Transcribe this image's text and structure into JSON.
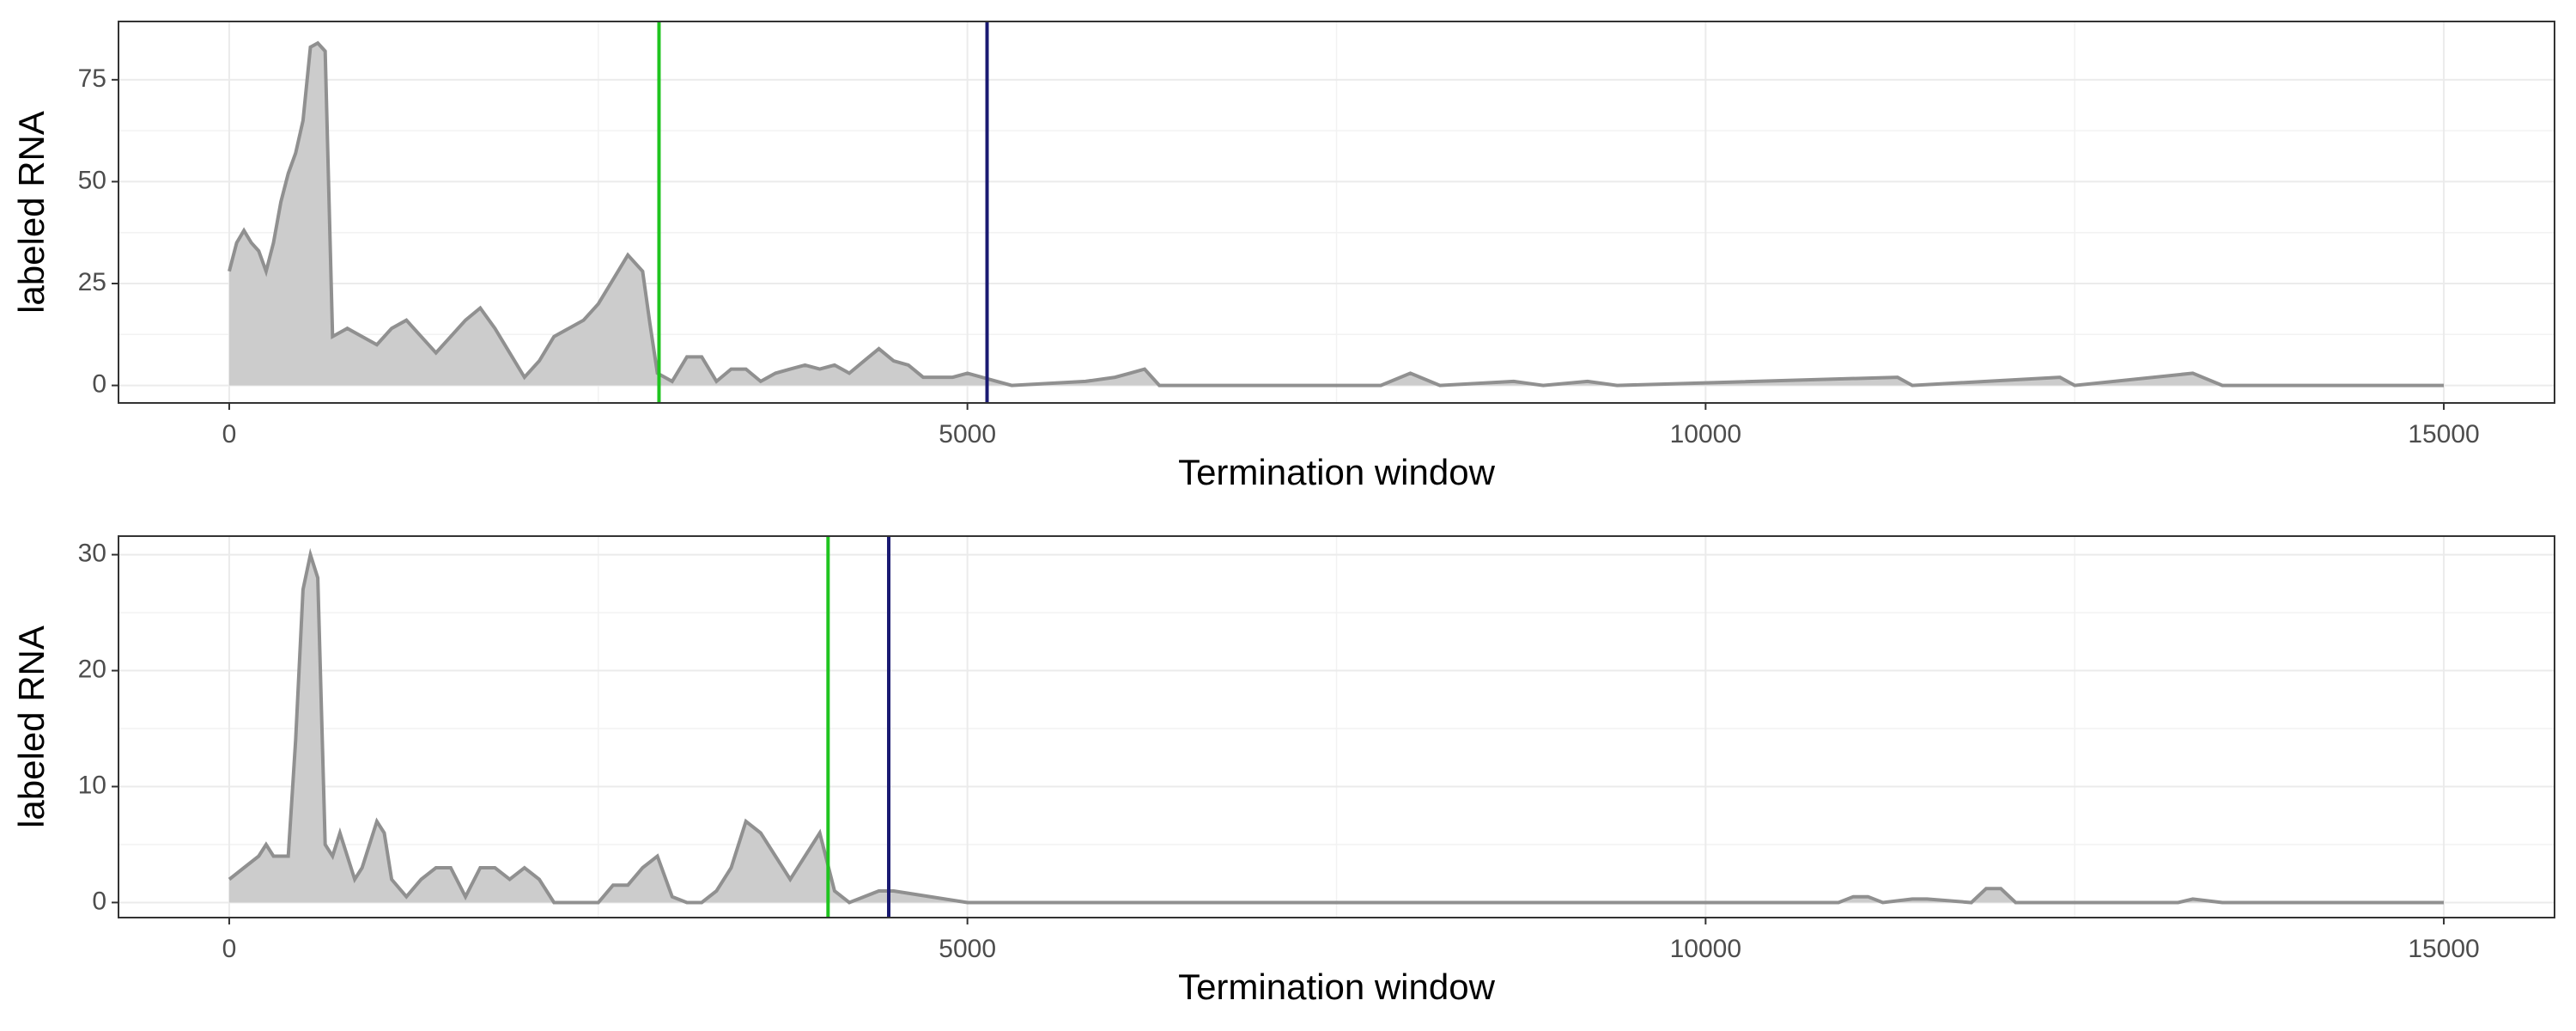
{
  "chart_data": [
    {
      "type": "area",
      "x_label": "Termination window",
      "y_label": "labeled RNA",
      "x": [
        0,
        50,
        100,
        150,
        200,
        250,
        300,
        350,
        400,
        450,
        500,
        550,
        600,
        650,
        700,
        800,
        900,
        1000,
        1100,
        1200,
        1300,
        1400,
        1500,
        1600,
        1700,
        1800,
        1900,
        2000,
        2100,
        2200,
        2300,
        2400,
        2500,
        2600,
        2700,
        2800,
        2850,
        2900,
        3000,
        3100,
        3200,
        3300,
        3400,
        3500,
        3600,
        3700,
        3800,
        3900,
        4000,
        4100,
        4200,
        4300,
        4400,
        4500,
        4600,
        4700,
        4900,
        5000,
        5200,
        5300,
        5800,
        6000,
        6100,
        6200,
        6300,
        7800,
        8000,
        8200,
        8700,
        8900,
        9200,
        9400,
        11300,
        11400,
        12400,
        12500,
        13300,
        13500,
        15000
      ],
      "values": [
        28,
        35,
        38,
        35,
        33,
        28,
        35,
        45,
        52,
        57,
        65,
        83,
        84,
        82,
        12,
        14,
        12,
        10,
        14,
        16,
        12,
        8,
        12,
        16,
        19,
        14,
        8,
        2,
        6,
        12,
        14,
        16,
        20,
        26,
        32,
        28,
        15,
        3,
        1,
        7,
        7,
        1,
        4,
        4,
        1,
        3,
        4,
        5,
        4,
        5,
        3,
        6,
        9,
        6,
        5,
        2,
        2,
        3,
        1,
        0,
        1,
        2,
        3,
        4,
        0,
        0,
        3,
        0,
        1,
        0,
        1,
        0,
        2,
        0,
        2,
        0,
        3,
        0,
        0
      ],
      "color": "#cccccc",
      "line_color": "#909090",
      "vlines": [
        {
          "x": 2911,
          "color": "#1fc41f"
        },
        {
          "x": 5133,
          "color": "#1a1a72"
        }
      ],
      "xlim": [
        -750,
        15750
      ],
      "xticks": [
        0,
        5000,
        10000,
        15000
      ],
      "xminor": [
        2500,
        7500,
        12500
      ],
      "ylim": [
        -4.3,
        89.3
      ],
      "yticks": [
        0,
        25,
        50,
        75
      ],
      "yminor": [
        12.5,
        37.5,
        62.5
      ],
      "grid": true
    },
    {
      "type": "area",
      "x_label": "Termination window",
      "y_label": "labeled RNA",
      "x": [
        0,
        100,
        200,
        250,
        300,
        400,
        450,
        500,
        550,
        600,
        650,
        700,
        750,
        800,
        850,
        900,
        950,
        1000,
        1050,
        1100,
        1200,
        1300,
        1400,
        1500,
        1600,
        1700,
        1800,
        1900,
        2000,
        2100,
        2200,
        2300,
        2400,
        2500,
        2600,
        2700,
        2800,
        2900,
        3000,
        3100,
        3200,
        3300,
        3400,
        3500,
        3600,
        3700,
        3800,
        3900,
        4000,
        4100,
        4200,
        4400,
        4500,
        5000,
        10900,
        11000,
        11100,
        11200,
        11400,
        11500,
        11800,
        11900,
        12000,
        12100,
        13200,
        13300,
        13500,
        15000
      ],
      "values": [
        2,
        3,
        4,
        5,
        4,
        4,
        14,
        27,
        30,
        28,
        5,
        4,
        6,
        4,
        2,
        3,
        5,
        7,
        6,
        2,
        0.5,
        2,
        3,
        3,
        0.5,
        3,
        3,
        2,
        3,
        2,
        0,
        0,
        0,
        0,
        1.5,
        1.5,
        3,
        4,
        0.5,
        0,
        0,
        1,
        3,
        7,
        6,
        4,
        2,
        4,
        6,
        1,
        0,
        1,
        1,
        0,
        0,
        0.5,
        0.5,
        0,
        0.3,
        0.3,
        0,
        1.2,
        1.2,
        0,
        0,
        0.3,
        0,
        0
      ],
      "color": "#cccccc",
      "line_color": "#909090",
      "vlines": [
        {
          "x": 4056,
          "color": "#1fc41f"
        },
        {
          "x": 4467,
          "color": "#1a1a72"
        }
      ],
      "xlim": [
        -750,
        15750
      ],
      "xticks": [
        0,
        5000,
        10000,
        15000
      ],
      "xminor": [
        2500,
        7500,
        12500
      ],
      "ylim": [
        -1.3,
        31.6
      ],
      "yticks": [
        0,
        10,
        20,
        30
      ],
      "yminor": [
        5,
        15,
        25
      ],
      "grid": true
    }
  ]
}
